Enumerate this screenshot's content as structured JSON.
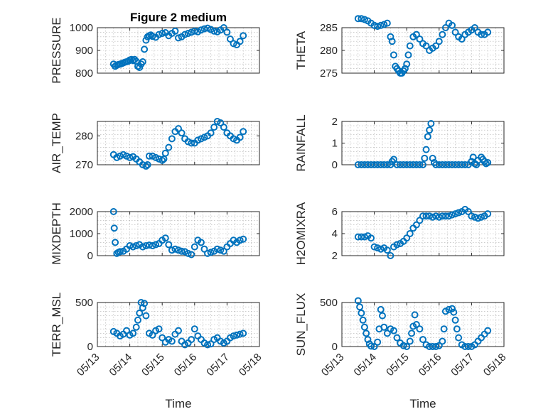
{
  "figure": {
    "title": "Figure 2 medium",
    "xlabel": "Time",
    "marker_color": "#0072BD",
    "x_tick_labels": [
      "05/13",
      "05/14",
      "05/15",
      "05/16",
      "05/17",
      "05/18"
    ]
  },
  "chart_data": [
    {
      "type": "scatter",
      "ylabel": "PRESSURE",
      "xlim": [
        0,
        5
      ],
      "ylim": [
        800,
        1000
      ],
      "yticks": [
        800,
        900,
        1000
      ],
      "grid": true,
      "x": [
        0.5,
        0.55,
        0.6,
        0.65,
        0.7,
        0.75,
        0.8,
        0.85,
        0.9,
        0.95,
        1.0,
        1.05,
        1.1,
        1.15,
        1.2,
        1.25,
        1.3,
        1.35,
        1.4,
        1.45,
        1.5,
        1.55,
        1.6,
        1.65,
        1.7,
        1.8,
        1.9,
        2.0,
        2.1,
        2.2,
        2.3,
        2.4,
        2.5,
        2.6,
        2.7,
        2.8,
        2.9,
        3.0,
        3.1,
        3.2,
        3.3,
        3.4,
        3.5,
        3.6,
        3.7,
        3.8,
        3.9,
        4.0,
        4.1,
        4.2,
        4.3,
        4.4,
        4.5
      ],
      "y": [
        840,
        830,
        835,
        838,
        840,
        842,
        845,
        848,
        850,
        852,
        858,
        860,
        855,
        860,
        852,
        830,
        825,
        840,
        850,
        905,
        945,
        960,
        965,
        968,
        962,
        958,
        970,
        975,
        978,
        965,
        975,
        985,
        955,
        960,
        970,
        975,
        980,
        985,
        982,
        990,
        995,
        998,
        992,
        985,
        982,
        990,
        1000,
        980,
        950,
        930,
        925,
        940,
        965
      ]
    },
    {
      "type": "scatter",
      "ylabel": "THETA",
      "xlim": [
        0,
        5
      ],
      "ylim": [
        275,
        285
      ],
      "yticks": [
        275,
        280,
        285
      ],
      "grid": true,
      "x": [
        0.5,
        0.6,
        0.7,
        0.8,
        0.9,
        1.0,
        1.1,
        1.2,
        1.3,
        1.4,
        1.5,
        1.55,
        1.6,
        1.65,
        1.7,
        1.75,
        1.8,
        1.85,
        1.9,
        1.95,
        2.0,
        2.05,
        2.1,
        2.2,
        2.3,
        2.4,
        2.5,
        2.6,
        2.7,
        2.8,
        2.9,
        3.0,
        3.1,
        3.2,
        3.3,
        3.4,
        3.5,
        3.6,
        3.7,
        3.8,
        3.9,
        4.0,
        4.1,
        4.2,
        4.3,
        4.4,
        4.5
      ],
      "y": [
        287,
        287,
        286.8,
        286.5,
        286,
        285.5,
        285.3,
        285.5,
        285.7,
        286,
        283,
        282,
        279,
        276.5,
        276,
        275.5,
        275,
        275,
        275.5,
        276,
        277,
        279,
        281,
        283,
        283.5,
        282.5,
        281.5,
        281,
        280,
        280.5,
        281,
        282,
        283.5,
        285,
        286,
        285.5,
        284,
        283,
        282.5,
        283.5,
        284,
        284.5,
        285,
        284,
        283.5,
        283.5,
        284
      ]
    },
    {
      "type": "scatter",
      "ylabel": "AIR_TEMP",
      "xlim": [
        0,
        5
      ],
      "ylim": [
        270,
        285
      ],
      "yticks": [
        270,
        280
      ],
      "grid": true,
      "x": [
        0.5,
        0.6,
        0.7,
        0.8,
        0.9,
        1.0,
        1.1,
        1.2,
        1.3,
        1.4,
        1.5,
        1.55,
        1.6,
        1.7,
        1.8,
        1.9,
        2.0,
        2.05,
        2.1,
        2.2,
        2.3,
        2.4,
        2.5,
        2.6,
        2.7,
        2.8,
        2.9,
        3.0,
        3.1,
        3.2,
        3.3,
        3.4,
        3.5,
        3.6,
        3.7,
        3.8,
        3.9,
        4.0,
        4.1,
        4.2,
        4.3,
        4.4,
        4.5
      ],
      "y": [
        273.5,
        272.5,
        273,
        273.5,
        273,
        272.5,
        272.8,
        272,
        271,
        270,
        269.5,
        270,
        273,
        273,
        272.5,
        272,
        271.5,
        272,
        274,
        276,
        279,
        281.5,
        282.5,
        281,
        279,
        278,
        277.5,
        277.5,
        278.5,
        279,
        279.5,
        280,
        281,
        283,
        285,
        284.5,
        283,
        281,
        280,
        279,
        278.5,
        279.5,
        281.5
      ]
    },
    {
      "type": "scatter",
      "ylabel": "RAINFALL",
      "xlim": [
        0,
        5
      ],
      "ylim": [
        0,
        2
      ],
      "yticks": [
        0,
        1,
        2
      ],
      "grid": true,
      "x": [
        0.5,
        0.6,
        0.7,
        0.8,
        0.9,
        1.0,
        1.1,
        1.2,
        1.3,
        1.4,
        1.5,
        1.55,
        1.6,
        1.7,
        1.8,
        1.9,
        2.0,
        2.1,
        2.2,
        2.3,
        2.4,
        2.5,
        2.55,
        2.6,
        2.65,
        2.7,
        2.75,
        2.8,
        2.85,
        2.9,
        3.0,
        3.1,
        3.2,
        3.3,
        3.4,
        3.5,
        3.6,
        3.7,
        3.8,
        3.9,
        4.0,
        4.05,
        4.1,
        4.15,
        4.2,
        4.3,
        4.35,
        4.4,
        4.45,
        4.5
      ],
      "y": [
        0,
        0,
        0,
        0,
        0,
        0,
        0,
        0,
        0,
        0,
        0,
        0.15,
        0.25,
        0,
        0,
        0,
        0,
        0,
        0,
        0,
        0,
        0,
        0.3,
        0.7,
        1.3,
        1.6,
        1.9,
        0.3,
        0.1,
        0,
        0,
        0,
        0,
        0,
        0,
        0,
        0,
        0,
        0,
        0,
        0.15,
        0.35,
        0.05,
        0,
        0.2,
        0.35,
        0.25,
        0.15,
        0.05,
        0.1
      ]
    },
    {
      "type": "scatter",
      "ylabel": "MIXDEPTH",
      "xlim": [
        0,
        5
      ],
      "ylim": [
        0,
        2000
      ],
      "yticks": [
        0,
        1000,
        2000
      ],
      "grid": true,
      "x": [
        0.5,
        0.52,
        0.55,
        0.6,
        0.65,
        0.7,
        0.8,
        0.9,
        1.0,
        1.1,
        1.2,
        1.3,
        1.4,
        1.5,
        1.6,
        1.7,
        1.8,
        1.9,
        2.0,
        2.1,
        2.2,
        2.3,
        2.4,
        2.5,
        2.6,
        2.7,
        2.8,
        2.9,
        3.0,
        3.1,
        3.2,
        3.3,
        3.4,
        3.5,
        3.6,
        3.7,
        3.8,
        3.9,
        4.0,
        4.1,
        4.2,
        4.3,
        4.4,
        4.5
      ],
      "y": [
        2000,
        1250,
        600,
        100,
        150,
        180,
        200,
        300,
        450,
        400,
        450,
        500,
        400,
        450,
        480,
        450,
        500,
        550,
        700,
        800,
        500,
        250,
        300,
        250,
        200,
        180,
        100,
        50,
        400,
        700,
        600,
        300,
        100,
        150,
        200,
        300,
        250,
        200,
        400,
        550,
        700,
        600,
        700,
        750
      ]
    },
    {
      "type": "scatter",
      "ylabel": "H2OMIXRA",
      "xlim": [
        0,
        5
      ],
      "ylim": [
        2,
        6
      ],
      "yticks": [
        2,
        4,
        6
      ],
      "grid": true,
      "x": [
        0.5,
        0.6,
        0.7,
        0.8,
        0.9,
        1.0,
        1.1,
        1.2,
        1.3,
        1.4,
        1.5,
        1.6,
        1.7,
        1.8,
        1.9,
        2.0,
        2.1,
        2.2,
        2.3,
        2.4,
        2.5,
        2.6,
        2.7,
        2.8,
        2.9,
        3.0,
        3.1,
        3.2,
        3.3,
        3.4,
        3.5,
        3.6,
        3.7,
        3.8,
        3.9,
        4.0,
        4.1,
        4.2,
        4.3,
        4.4,
        4.5
      ],
      "y": [
        3.7,
        3.7,
        3.7,
        3.8,
        3.6,
        2.8,
        2.7,
        2.6,
        2.7,
        2.5,
        2.0,
        2.8,
        3.0,
        3.1,
        3.3,
        3.6,
        4.0,
        4.5,
        4.8,
        5.2,
        5.6,
        5.6,
        5.6,
        5.5,
        5.6,
        5.5,
        5.6,
        5.6,
        5.6,
        5.7,
        5.8,
        5.9,
        6.0,
        6.2,
        6.0,
        5.6,
        5.5,
        5.4,
        5.5,
        5.6,
        5.8
      ]
    },
    {
      "type": "scatter",
      "ylabel": "TERR_MSL",
      "xlim": [
        0,
        5
      ],
      "ylim": [
        0,
        500
      ],
      "yticks": [
        0,
        500
      ],
      "grid": true,
      "x": [
        0.5,
        0.6,
        0.7,
        0.8,
        0.9,
        1.0,
        1.1,
        1.2,
        1.25,
        1.3,
        1.35,
        1.4,
        1.45,
        1.5,
        1.6,
        1.7,
        1.8,
        1.9,
        2.0,
        2.1,
        2.2,
        2.3,
        2.4,
        2.5,
        2.6,
        2.7,
        2.8,
        2.9,
        3.0,
        3.1,
        3.2,
        3.3,
        3.4,
        3.5,
        3.6,
        3.7,
        3.8,
        3.9,
        4.0,
        4.1,
        4.2,
        4.3,
        4.4,
        4.5
      ],
      "y": [
        170,
        150,
        120,
        140,
        180,
        130,
        150,
        220,
        300,
        380,
        500,
        440,
        490,
        350,
        150,
        130,
        180,
        200,
        100,
        50,
        80,
        60,
        140,
        180,
        60,
        20,
        40,
        80,
        200,
        120,
        80,
        40,
        20,
        30,
        80,
        100,
        60,
        40,
        60,
        100,
        120,
        130,
        140,
        150
      ]
    },
    {
      "type": "scatter",
      "ylabel": "SUN_FLUX",
      "xlim": [
        0,
        5
      ],
      "ylim": [
        0,
        500
      ],
      "yticks": [
        0,
        500
      ],
      "grid": true,
      "x": [
        0.5,
        0.55,
        0.6,
        0.65,
        0.7,
        0.75,
        0.8,
        0.85,
        0.9,
        1.0,
        1.1,
        1.15,
        1.2,
        1.25,
        1.3,
        1.4,
        1.5,
        1.6,
        1.7,
        1.8,
        1.9,
        2.0,
        2.1,
        2.15,
        2.2,
        2.25,
        2.3,
        2.4,
        2.5,
        2.6,
        2.7,
        2.8,
        2.9,
        3.0,
        3.1,
        3.15,
        3.2,
        3.3,
        3.4,
        3.45,
        3.5,
        3.55,
        3.6,
        3.7,
        3.8,
        3.9,
        4.0,
        4.1,
        4.2,
        4.3,
        4.4,
        4.5
      ],
      "y": [
        520,
        450,
        380,
        300,
        220,
        150,
        80,
        30,
        5,
        0,
        50,
        200,
        420,
        350,
        220,
        150,
        200,
        180,
        100,
        40,
        10,
        0,
        60,
        150,
        230,
        360,
        250,
        200,
        80,
        20,
        0,
        0,
        0,
        10,
        60,
        200,
        400,
        420,
        430,
        390,
        300,
        200,
        100,
        20,
        0,
        0,
        0,
        20,
        60,
        100,
        140,
        180
      ]
    }
  ]
}
